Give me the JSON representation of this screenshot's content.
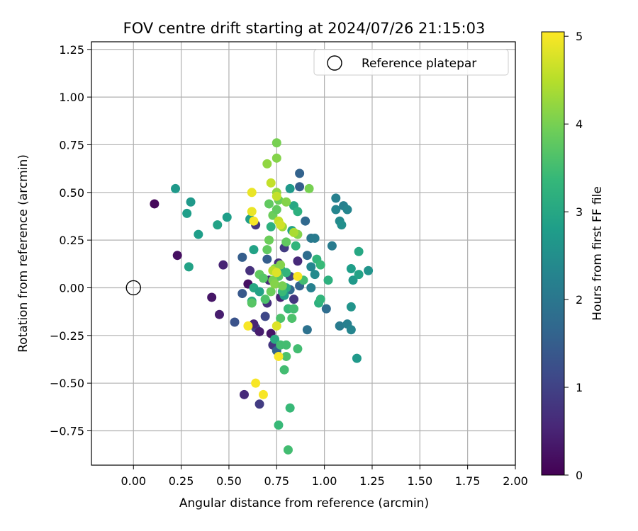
{
  "chart_data": {
    "type": "scatter",
    "title": "FOV centre drift starting at 2024/07/26 21:15:03",
    "xlabel": "Angular distance from reference (arcmin)",
    "ylabel": "Rotation from reference (arcmin)",
    "xlim": [
      -0.22,
      2.0
    ],
    "ylim": [
      -0.93,
      1.29
    ],
    "xticks": [
      "0.00",
      "0.25",
      "0.50",
      "0.75",
      "1.00",
      "1.25",
      "1.50",
      "1.75",
      "2.00"
    ],
    "yticks": [
      "−0.75",
      "−0.50",
      "−0.25",
      "0.00",
      "0.25",
      "0.50",
      "0.75",
      "1.00",
      "1.25"
    ],
    "grid": true,
    "legend": {
      "position": "top-right",
      "entries": [
        "Reference platepar"
      ]
    },
    "reference_point": {
      "x": 0.0,
      "y": 0.0,
      "label": "Reference platepar"
    },
    "colorbar": {
      "label": "Hours from first FF file",
      "colormap": "viridis",
      "range": [
        0,
        5.05
      ],
      "ticks": [
        "0",
        "1",
        "2",
        "3",
        "4",
        "5"
      ]
    },
    "colormap_stops": [
      "#440154",
      "#482878",
      "#3e4989",
      "#31688e",
      "#26828e",
      "#1f9e89",
      "#35b779",
      "#6ece58",
      "#b5de2b",
      "#fde725"
    ],
    "points": [
      {
        "x": 0.11,
        "y": 0.44,
        "h": 0.1
      },
      {
        "x": 0.23,
        "y": 0.17,
        "h": 0.2
      },
      {
        "x": 0.41,
        "y": -0.05,
        "h": 0.3
      },
      {
        "x": 0.45,
        "y": -0.14,
        "h": 0.4
      },
      {
        "x": 0.47,
        "y": 0.12,
        "h": 0.5
      },
      {
        "x": 0.58,
        "y": -0.56,
        "h": 0.6
      },
      {
        "x": 0.61,
        "y": 0.09,
        "h": 0.7
      },
      {
        "x": 0.64,
        "y": 0.33,
        "h": 0.8
      },
      {
        "x": 0.66,
        "y": -0.61,
        "h": 0.9
      },
      {
        "x": 0.64,
        "y": -0.21,
        "h": 1.0
      },
      {
        "x": 0.69,
        "y": -0.15,
        "h": 1.1
      },
      {
        "x": 0.72,
        "y": -0.24,
        "h": 0.3
      },
      {
        "x": 0.6,
        "y": 0.02,
        "h": 0.2
      },
      {
        "x": 0.63,
        "y": -0.19,
        "h": 0.5
      },
      {
        "x": 0.71,
        "y": 0.04,
        "h": 0.6
      },
      {
        "x": 0.76,
        "y": 0.13,
        "h": 0.7
      },
      {
        "x": 0.84,
        "y": -0.06,
        "h": 0.8
      },
      {
        "x": 0.86,
        "y": 0.14,
        "h": 0.6
      },
      {
        "x": 0.77,
        "y": -0.05,
        "h": 0.5
      },
      {
        "x": 0.79,
        "y": 0.21,
        "h": 0.9
      },
      {
        "x": 0.82,
        "y": 0.06,
        "h": 1.0
      },
      {
        "x": 0.66,
        "y": -0.23,
        "h": 0.4
      },
      {
        "x": 0.7,
        "y": -0.08,
        "h": 0.7
      },
      {
        "x": 0.73,
        "y": -0.3,
        "h": 0.8
      },
      {
        "x": 0.53,
        "y": -0.18,
        "h": 1.3
      },
      {
        "x": 0.57,
        "y": -0.03,
        "h": 1.4
      },
      {
        "x": 0.57,
        "y": 0.16,
        "h": 1.5
      },
      {
        "x": 0.7,
        "y": 0.15,
        "h": 1.5
      },
      {
        "x": 0.75,
        "y": -0.33,
        "h": 1.6
      },
      {
        "x": 0.82,
        "y": -0.01,
        "h": 1.7
      },
      {
        "x": 0.87,
        "y": 0.6,
        "h": 1.6
      },
      {
        "x": 0.87,
        "y": 0.53,
        "h": 1.5
      },
      {
        "x": 0.9,
        "y": 0.35,
        "h": 1.7
      },
      {
        "x": 0.91,
        "y": 0.17,
        "h": 1.8
      },
      {
        "x": 0.87,
        "y": 0.01,
        "h": 1.6
      },
      {
        "x": 0.93,
        "y": 0.26,
        "h": 2.0
      },
      {
        "x": 0.95,
        "y": 0.26,
        "h": 2.1
      },
      {
        "x": 0.91,
        "y": -0.22,
        "h": 1.9
      },
      {
        "x": 0.93,
        "y": 0.11,
        "h": 2.3
      },
      {
        "x": 0.95,
        "y": 0.07,
        "h": 2.4
      },
      {
        "x": 0.93,
        "y": 0.0,
        "h": 2.2
      },
      {
        "x": 1.01,
        "y": -0.11,
        "h": 1.8
      },
      {
        "x": 1.04,
        "y": 0.22,
        "h": 2.1
      },
      {
        "x": 1.06,
        "y": 0.47,
        "h": 2.2
      },
      {
        "x": 1.06,
        "y": 0.41,
        "h": 2.3
      },
      {
        "x": 1.08,
        "y": 0.35,
        "h": 2.4
      },
      {
        "x": 1.09,
        "y": 0.33,
        "h": 2.5
      },
      {
        "x": 1.1,
        "y": 0.43,
        "h": 2.2
      },
      {
        "x": 1.12,
        "y": 0.41,
        "h": 2.3
      },
      {
        "x": 1.08,
        "y": -0.2,
        "h": 2.1
      },
      {
        "x": 1.12,
        "y": -0.19,
        "h": 2.2
      },
      {
        "x": 1.14,
        "y": -0.22,
        "h": 2.3
      },
      {
        "x": 1.14,
        "y": -0.1,
        "h": 2.6
      },
      {
        "x": 1.14,
        "y": 0.1,
        "h": 2.8
      },
      {
        "x": 1.15,
        "y": 0.04,
        "h": 2.7
      },
      {
        "x": 1.18,
        "y": 0.07,
        "h": 2.9
      },
      {
        "x": 1.18,
        "y": 0.19,
        "h": 3.0
      },
      {
        "x": 1.23,
        "y": 0.09,
        "h": 2.6
      },
      {
        "x": 1.17,
        "y": -0.37,
        "h": 2.7
      },
      {
        "x": 0.22,
        "y": 0.52,
        "h": 2.7
      },
      {
        "x": 0.28,
        "y": 0.39,
        "h": 2.8
      },
      {
        "x": 0.3,
        "y": 0.45,
        "h": 2.7
      },
      {
        "x": 0.34,
        "y": 0.28,
        "h": 2.8
      },
      {
        "x": 0.29,
        "y": 0.11,
        "h": 2.9
      },
      {
        "x": 0.44,
        "y": 0.33,
        "h": 2.9
      },
      {
        "x": 0.49,
        "y": 0.37,
        "h": 2.8
      },
      {
        "x": 0.61,
        "y": 0.36,
        "h": 2.8
      },
      {
        "x": 0.63,
        "y": 0.2,
        "h": 2.9
      },
      {
        "x": 0.62,
        "y": -0.07,
        "h": 3.1
      },
      {
        "x": 0.63,
        "y": 0.0,
        "h": 3.0
      },
      {
        "x": 0.66,
        "y": -0.02,
        "h": 2.9
      },
      {
        "x": 0.72,
        "y": 0.32,
        "h": 3.2
      },
      {
        "x": 0.74,
        "y": -0.27,
        "h": 3.1
      },
      {
        "x": 0.77,
        "y": 0.1,
        "h": 3.0
      },
      {
        "x": 0.79,
        "y": -0.04,
        "h": 2.8
      },
      {
        "x": 0.8,
        "y": 0.0,
        "h": 3.1
      },
      {
        "x": 0.8,
        "y": 0.08,
        "h": 3.3
      },
      {
        "x": 0.82,
        "y": 0.52,
        "h": 2.7
      },
      {
        "x": 0.83,
        "y": 0.3,
        "h": 2.9
      },
      {
        "x": 0.84,
        "y": 0.43,
        "h": 3.0
      },
      {
        "x": 0.86,
        "y": 0.4,
        "h": 3.2
      },
      {
        "x": 0.85,
        "y": 0.22,
        "h": 3.3
      },
      {
        "x": 0.78,
        "y": -0.02,
        "h": 3.4
      },
      {
        "x": 0.81,
        "y": -0.11,
        "h": 3.4
      },
      {
        "x": 0.83,
        "y": -0.16,
        "h": 3.6
      },
      {
        "x": 0.84,
        "y": -0.11,
        "h": 3.5
      },
      {
        "x": 0.77,
        "y": -0.3,
        "h": 3.5
      },
      {
        "x": 0.8,
        "y": -0.3,
        "h": 3.5
      },
      {
        "x": 0.8,
        "y": -0.36,
        "h": 3.6
      },
      {
        "x": 0.79,
        "y": -0.43,
        "h": 3.5
      },
      {
        "x": 0.86,
        "y": -0.32,
        "h": 3.5
      },
      {
        "x": 0.82,
        "y": -0.63,
        "h": 3.4
      },
      {
        "x": 0.76,
        "y": -0.72,
        "h": 3.4
      },
      {
        "x": 0.81,
        "y": -0.85,
        "h": 3.5
      },
      {
        "x": 0.96,
        "y": 0.15,
        "h": 3.3
      },
      {
        "x": 0.98,
        "y": 0.12,
        "h": 3.4
      },
      {
        "x": 0.97,
        "y": -0.08,
        "h": 3.2
      },
      {
        "x": 0.98,
        "y": -0.06,
        "h": 3.3
      },
      {
        "x": 1.02,
        "y": 0.04,
        "h": 3.2
      },
      {
        "x": 0.89,
        "y": 0.04,
        "h": 3.5
      },
      {
        "x": 0.77,
        "y": -0.16,
        "h": 3.6
      },
      {
        "x": 0.62,
        "y": -0.08,
        "h": 3.7
      },
      {
        "x": 0.66,
        "y": 0.07,
        "h": 3.8
      },
      {
        "x": 0.68,
        "y": 0.05,
        "h": 3.7
      },
      {
        "x": 0.69,
        "y": -0.06,
        "h": 3.6
      },
      {
        "x": 0.7,
        "y": 0.2,
        "h": 3.8
      },
      {
        "x": 0.71,
        "y": 0.25,
        "h": 3.9
      },
      {
        "x": 0.73,
        "y": 0.38,
        "h": 3.9
      },
      {
        "x": 0.71,
        "y": 0.44,
        "h": 3.8
      },
      {
        "x": 0.75,
        "y": 0.41,
        "h": 3.8
      },
      {
        "x": 0.76,
        "y": 0.46,
        "h": 3.9
      },
      {
        "x": 0.8,
        "y": 0.24,
        "h": 3.8
      },
      {
        "x": 0.76,
        "y": 0.06,
        "h": 3.7
      },
      {
        "x": 0.72,
        "y": -0.02,
        "h": 3.9
      },
      {
        "x": 0.73,
        "y": 0.04,
        "h": 4.0
      },
      {
        "x": 0.74,
        "y": 0.02,
        "h": 4.1
      },
      {
        "x": 0.74,
        "y": 0.1,
        "h": 4.1
      },
      {
        "x": 0.77,
        "y": 0.12,
        "h": 4.1
      },
      {
        "x": 0.78,
        "y": 0.01,
        "h": 4.0
      },
      {
        "x": 0.75,
        "y": 0.76,
        "h": 4.0
      },
      {
        "x": 0.75,
        "y": 0.68,
        "h": 4.1
      },
      {
        "x": 0.7,
        "y": 0.65,
        "h": 4.2
      },
      {
        "x": 0.75,
        "y": 0.5,
        "h": 4.2
      },
      {
        "x": 0.78,
        "y": 0.32,
        "h": 4.3
      },
      {
        "x": 0.8,
        "y": 0.45,
        "h": 4.1
      },
      {
        "x": 0.86,
        "y": 0.28,
        "h": 4.1
      },
      {
        "x": 0.84,
        "y": 0.29,
        "h": 4.4
      },
      {
        "x": 0.92,
        "y": 0.52,
        "h": 4.0
      },
      {
        "x": 0.72,
        "y": 0.55,
        "h": 4.6
      },
      {
        "x": 0.75,
        "y": 0.48,
        "h": 4.6
      },
      {
        "x": 0.76,
        "y": 0.35,
        "h": 4.6
      },
      {
        "x": 0.77,
        "y": 0.33,
        "h": 4.7
      },
      {
        "x": 0.73,
        "y": 0.09,
        "h": 4.5
      },
      {
        "x": 0.75,
        "y": 0.08,
        "h": 4.8
      },
      {
        "x": 0.75,
        "y": -0.2,
        "h": 4.8
      },
      {
        "x": 0.62,
        "y": 0.5,
        "h": 4.9
      },
      {
        "x": 0.62,
        "y": 0.4,
        "h": 4.9
      },
      {
        "x": 0.63,
        "y": 0.35,
        "h": 5.0
      },
      {
        "x": 0.6,
        "y": -0.2,
        "h": 5.0
      },
      {
        "x": 0.64,
        "y": -0.5,
        "h": 5.0
      },
      {
        "x": 0.68,
        "y": -0.56,
        "h": 5.0
      },
      {
        "x": 0.76,
        "y": -0.36,
        "h": 5.0
      },
      {
        "x": 0.86,
        "y": 0.06,
        "h": 5.0
      }
    ]
  }
}
